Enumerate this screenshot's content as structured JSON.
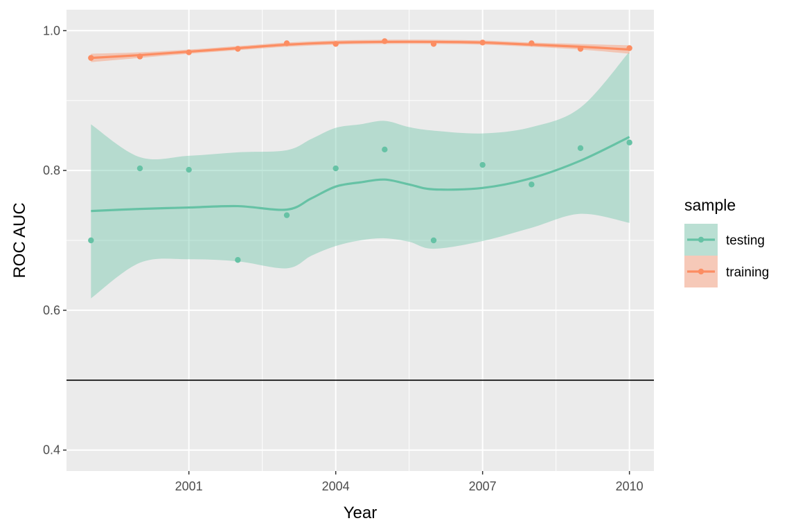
{
  "chart_data": {
    "type": "scatter",
    "xlabel": "Year",
    "ylabel": "ROC AUC",
    "xlim": [
      1998.5,
      2010.5
    ],
    "ylim": [
      0.37,
      1.03
    ],
    "xticks": [
      2001,
      2004,
      2007,
      2010
    ],
    "yticks": [
      0.4,
      0.6,
      0.8,
      1.0
    ],
    "ytick_labels": [
      "0.4",
      "0.6",
      "0.8",
      "1.0"
    ],
    "grid": true,
    "reference_line": {
      "y": 0.5
    },
    "legend": {
      "title": "sample",
      "placement": "right"
    },
    "series": [
      {
        "name": "testing",
        "color": "#66c2a5",
        "x": [
          1999,
          2000,
          2001,
          2002,
          2003,
          2004,
          2005,
          2006,
          2007,
          2008,
          2009,
          2010
        ],
        "y": [
          0.7,
          0.803,
          0.801,
          0.672,
          0.736,
          0.803,
          0.83,
          0.7,
          0.808,
          0.78,
          0.832,
          0.84
        ],
        "smooth": {
          "x": [
            1999,
            2000,
            2001,
            2002,
            2003,
            2003.5,
            2004,
            2004.5,
            2005,
            2005.5,
            2006,
            2007,
            2008,
            2009,
            2010
          ],
          "fit": [
            0.742,
            0.745,
            0.747,
            0.749,
            0.744,
            0.76,
            0.777,
            0.783,
            0.787,
            0.78,
            0.773,
            0.775,
            0.789,
            0.814,
            0.848
          ],
          "lower": [
            0.617,
            0.668,
            0.673,
            0.67,
            0.66,
            0.678,
            0.692,
            0.7,
            0.703,
            0.698,
            0.688,
            0.699,
            0.718,
            0.738,
            0.725
          ],
          "upper": [
            0.866,
            0.819,
            0.821,
            0.826,
            0.829,
            0.845,
            0.861,
            0.866,
            0.871,
            0.862,
            0.857,
            0.853,
            0.862,
            0.89,
            0.97
          ]
        }
      },
      {
        "name": "training",
        "color": "#fc8d62",
        "x": [
          1999,
          2000,
          2001,
          2002,
          2003,
          2004,
          2005,
          2006,
          2007,
          2008,
          2009,
          2010
        ],
        "y": [
          0.961,
          0.963,
          0.969,
          0.974,
          0.982,
          0.981,
          0.985,
          0.981,
          0.983,
          0.982,
          0.974,
          0.975
        ],
        "smooth": {
          "x": [
            1999,
            2000,
            2001,
            2002,
            2003,
            2004,
            2005,
            2006,
            2007,
            2008,
            2009,
            2010
          ],
          "fit": [
            0.961,
            0.965,
            0.97,
            0.975,
            0.98,
            0.983,
            0.984,
            0.984,
            0.983,
            0.98,
            0.977,
            0.973
          ],
          "lower": [
            0.955,
            0.961,
            0.967,
            0.972,
            0.977,
            0.98,
            0.981,
            0.981,
            0.98,
            0.977,
            0.973,
            0.967
          ],
          "upper": [
            0.967,
            0.969,
            0.973,
            0.978,
            0.983,
            0.986,
            0.987,
            0.987,
            0.986,
            0.983,
            0.981,
            0.979
          ]
        }
      }
    ]
  }
}
